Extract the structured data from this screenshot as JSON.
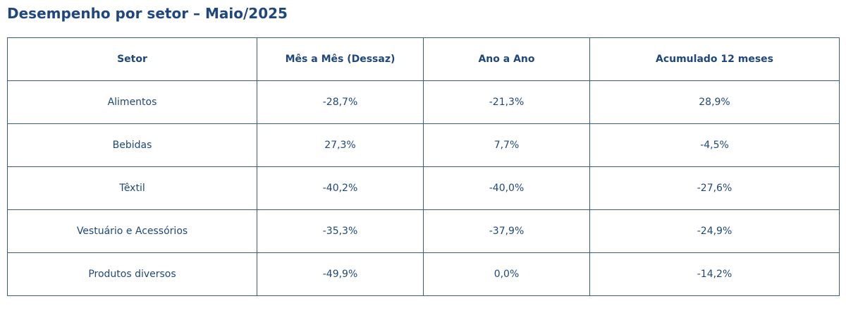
{
  "title": "Desempenho por setor – Maio/2025",
  "chart_data": {
    "type": "table",
    "title": "Desempenho por setor – Maio/2025",
    "columns": [
      "Setor",
      "Mês a Mês (Dessaz)",
      "Ano a Ano",
      "Acumulado 12 meses"
    ],
    "rows": [
      [
        "Alimentos",
        "-28,7%",
        "-21,3%",
        "28,9%"
      ],
      [
        "Bebidas",
        "27,3%",
        "7,7%",
        "-4,5%"
      ],
      [
        "Têxtil",
        "-40,2%",
        "-40,0%",
        "-27,6%"
      ],
      [
        "Vestuário e Acessórios",
        "-35,3%",
        "-37,9%",
        "-24,9%"
      ],
      [
        "Produtos diversos",
        "-49,9%",
        "0,0%",
        "-14,2%"
      ]
    ]
  },
  "colors": {
    "text": "#1f477d",
    "border": "#3a5a85"
  }
}
